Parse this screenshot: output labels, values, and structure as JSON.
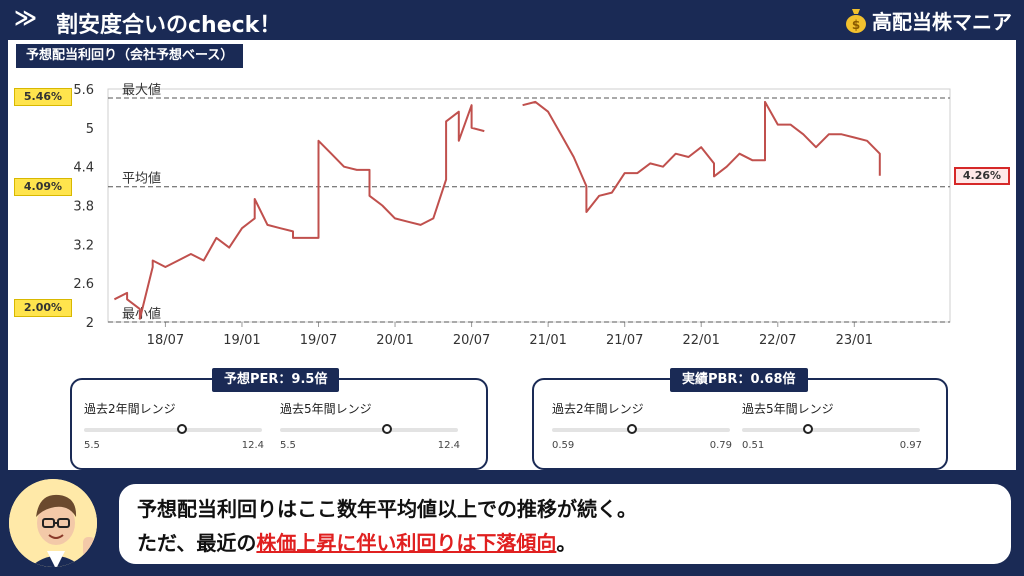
{
  "header": {
    "chevron": "≫",
    "title": "割安度合いのcheck！",
    "brand": "高配当株マニア",
    "brand_icon": "money-bag-icon"
  },
  "chart_tag": "予想配当利回り（会社予想ベース）",
  "badges": {
    "max": "5.46%",
    "avg": "4.09%",
    "min": "2.00%",
    "current": "4.26%"
  },
  "chart_data": {
    "type": "line",
    "title": "予想配当利回り（会社予想ベース）",
    "xlabel": "",
    "ylabel": "",
    "ylim": [
      2,
      5.6
    ],
    "yticks": [
      "5.6",
      "5",
      "4.4",
      "3.8",
      "3.2",
      "2.6",
      "2"
    ],
    "xticks": [
      "18/07",
      "19/01",
      "19/07",
      "20/01",
      "20/07",
      "21/01",
      "21/07",
      "22/01",
      "22/07",
      "23/01"
    ],
    "xlim_months": [
      -4.5,
      7.5
    ],
    "color": "#c0504d",
    "reference_lines": [
      {
        "label": "最大値",
        "value": 5.46
      },
      {
        "label": "平均値",
        "value": 4.09
      },
      {
        "label": "最小値",
        "value": 2.0
      }
    ],
    "series": [
      {
        "segments": [
          [
            [
              "2018-03",
              2.35
            ],
            [
              "2018-04",
              2.45
            ],
            [
              "2018-04",
              2.35
            ],
            [
              "2018-05",
              2.2
            ],
            [
              "2018-05",
              2.05
            ],
            [
              "2018-06",
              2.85
            ],
            [
              "2018-06",
              2.95
            ],
            [
              "2018-07",
              2.85
            ],
            [
              "2018-08",
              2.95
            ],
            [
              "2018-09",
              3.05
            ],
            [
              "2018-10",
              2.95
            ],
            [
              "2018-11",
              3.3
            ],
            [
              "2018-12",
              3.15
            ],
            [
              "2019-01",
              3.45
            ],
            [
              "2019-02",
              3.6
            ],
            [
              "2019-02",
              3.9
            ],
            [
              "2019-03",
              3.5
            ],
            [
              "2019-04",
              3.45
            ],
            [
              "2019-05",
              3.4
            ],
            [
              "2019-05",
              3.3
            ],
            [
              "2019-06",
              3.3
            ],
            [
              "2019-07",
              3.3
            ],
            [
              "2019-07",
              4.8
            ],
            [
              "2019-08",
              4.6
            ],
            [
              "2019-09",
              4.4
            ],
            [
              "2019-10",
              4.35
            ],
            [
              "2019-11",
              4.35
            ],
            [
              "2019-11",
              3.95
            ],
            [
              "2019-12",
              3.8
            ],
            [
              "2020-01",
              3.6
            ],
            [
              "2020-02",
              3.55
            ],
            [
              "2020-03",
              3.5
            ],
            [
              "2020-04",
              3.6
            ],
            [
              "2020-05",
              4.2
            ],
            [
              "2020-05",
              5.1
            ],
            [
              "2020-06",
              5.25
            ],
            [
              "2020-06",
              4.8
            ],
            [
              "2020-07",
              5.35
            ],
            [
              "2020-07",
              5.0
            ],
            [
              "2020-08",
              4.95
            ]
          ],
          [
            [
              "2020-11",
              5.35
            ],
            [
              "2020-12",
              5.4
            ],
            [
              "2021-01",
              5.25
            ],
            [
              "2021-02",
              4.9
            ],
            [
              "2021-03",
              4.55
            ],
            [
              "2021-04",
              4.1
            ],
            [
              "2021-04",
              3.7
            ],
            [
              "2021-05",
              3.95
            ],
            [
              "2021-06",
              4.0
            ],
            [
              "2021-07",
              4.3
            ],
            [
              "2021-08",
              4.3
            ],
            [
              "2021-09",
              4.45
            ],
            [
              "2021-10",
              4.4
            ],
            [
              "2021-11",
              4.6
            ],
            [
              "2021-12",
              4.55
            ],
            [
              "2022-01",
              4.7
            ],
            [
              "2022-02",
              4.45
            ],
            [
              "2022-02",
              4.25
            ],
            [
              "2022-03",
              4.4
            ],
            [
              "2022-04",
              4.6
            ],
            [
              "2022-05",
              4.5
            ],
            [
              "2022-06",
              4.5
            ],
            [
              "2022-06",
              5.4
            ],
            [
              "2022-07",
              5.05
            ],
            [
              "2022-08",
              5.05
            ],
            [
              "2022-09",
              4.9
            ],
            [
              "2022-10",
              4.7
            ],
            [
              "2022-11",
              4.9
            ],
            [
              "2022-12",
              4.9
            ],
            [
              "2023-01",
              4.85
            ],
            [
              "2023-02",
              4.8
            ],
            [
              "2023-03",
              4.6
            ],
            [
              "2023-03",
              4.26
            ]
          ]
        ]
      }
    ]
  },
  "per_card": {
    "label": "予想PER：9.5倍",
    "ranges": [
      {
        "label": "過去2年間レンジ",
        "min": "5.5",
        "max": "12.4",
        "pos": 0.55
      },
      {
        "label": "過去5年間レンジ",
        "min": "5.5",
        "max": "12.4",
        "pos": 0.6
      }
    ]
  },
  "pbr_card": {
    "label": "実績PBR：0.68倍",
    "ranges": [
      {
        "label": "過去2年間レンジ",
        "min": "0.59",
        "max": "0.79",
        "pos": 0.45
      },
      {
        "label": "過去5年間レンジ",
        "min": "0.51",
        "max": "0.97",
        "pos": 0.37
      }
    ]
  },
  "comment": {
    "avatar_icon": "presenter-avatar-icon",
    "line1": "予想配当利回りはここ数年平均値以上での推移が続く。",
    "line2_a": "ただ、最近の",
    "line2_red": "株価上昇に伴い利回りは下落傾向",
    "line2_b": "。"
  }
}
